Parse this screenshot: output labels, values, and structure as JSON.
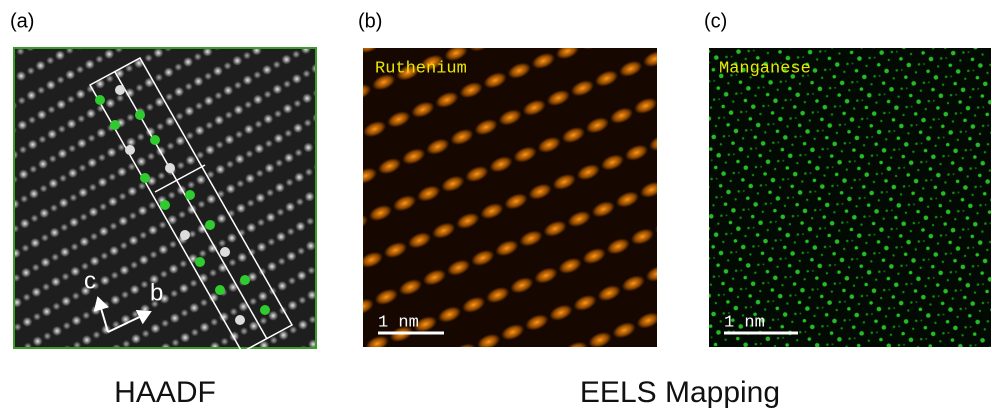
{
  "panels": [
    {
      "label": "(a)",
      "axis_labels": [
        "c",
        "b"
      ]
    },
    {
      "label": "(b)",
      "element": "Ruthenium",
      "scale_bar": "1 nm"
    },
    {
      "label": "(c)",
      "element": "Manganese",
      "scale_bar": "1 nm"
    }
  ],
  "captions": [
    "HAADF",
    "EELS Mapping"
  ]
}
